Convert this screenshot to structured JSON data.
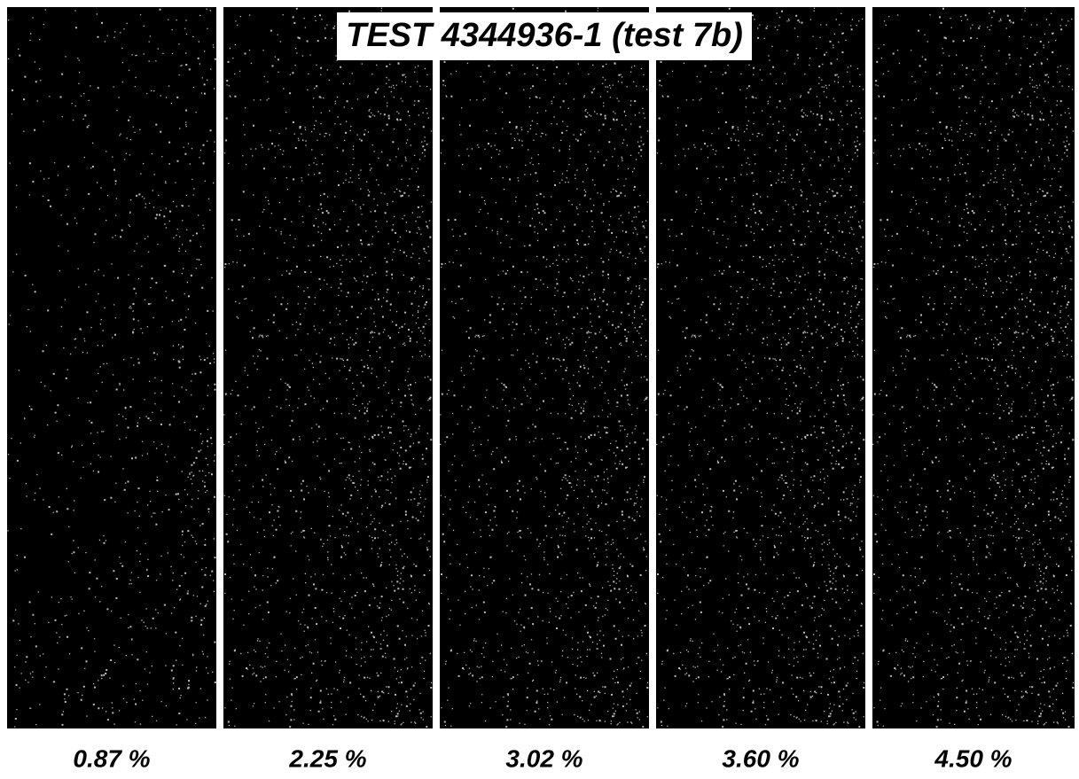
{
  "title": "TEST 4344936-1 (test 7b)",
  "panels": [
    {
      "label": "0.87 %"
    },
    {
      "label": "2.25 %"
    },
    {
      "label": "3.02 %"
    },
    {
      "label": "3.60 %"
    },
    {
      "label": "4.50 %"
    }
  ]
}
